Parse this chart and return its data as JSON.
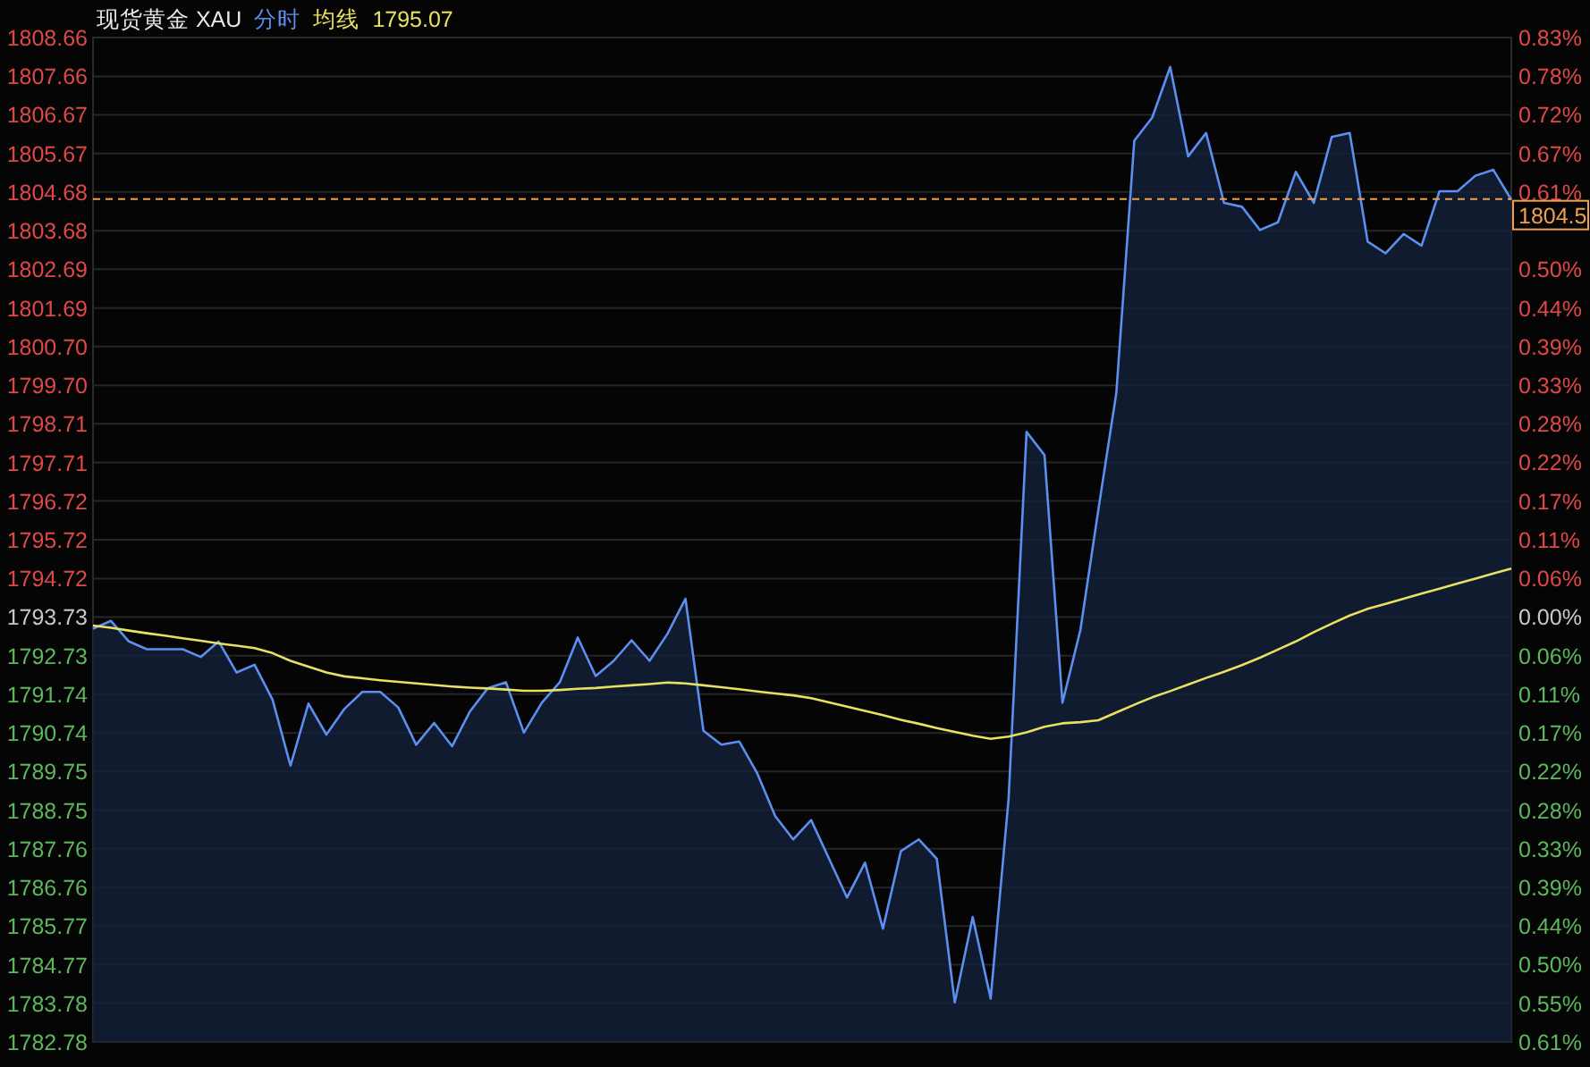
{
  "chart_data": {
    "type": "line",
    "title": "现货黄金 XAU",
    "annotations": [
      "1795.07"
    ],
    "grid": "y",
    "tick_labels": "y",
    "marker": "none",
    "categories": [
      null,
      null,
      null,
      null,
      null,
      null,
      null,
      null,
      null,
      null,
      null,
      null,
      null,
      null,
      null,
      null,
      null,
      null,
      null,
      null,
      null,
      null,
      null,
      null,
      null,
      null,
      null,
      null,
      null,
      null,
      null,
      null,
      null,
      null,
      null,
      null,
      null,
      null,
      null,
      null,
      null,
      null,
      null,
      null,
      null,
      null,
      null,
      null,
      null,
      null,
      null,
      null,
      null,
      null,
      null,
      null,
      null,
      null,
      null,
      null,
      null,
      null,
      null,
      null,
      null,
      null,
      null,
      null,
      null,
      null,
      null,
      null,
      null,
      null,
      null,
      null,
      null,
      null,
      null,
      null
    ],
    "ylim": [
      1782.78,
      1808.66
    ],
    "yticks": [
      {
        "value": 1808.66,
        "label": "1808.66"
      },
      {
        "value": 1807.66,
        "label": "1807.66"
      },
      {
        "value": 1806.67,
        "label": "1806.67"
      },
      {
        "value": 1805.67,
        "label": "1805.67"
      },
      {
        "value": 1804.68,
        "label": "1804.68"
      },
      {
        "value": 1803.68,
        "label": "1803.68"
      },
      {
        "value": 1802.69,
        "label": "1802.69"
      },
      {
        "value": 1801.69,
        "label": "1801.69"
      },
      {
        "value": 1800.7,
        "label": "1800.70"
      },
      {
        "value": 1799.7,
        "label": "1799.70"
      },
      {
        "value": 1798.71,
        "label": "1798.71"
      },
      {
        "value": 1797.71,
        "label": "1797.71"
      },
      {
        "value": 1796.72,
        "label": "1796.72"
      },
      {
        "value": 1795.72,
        "label": "1795.72"
      },
      {
        "value": 1794.72,
        "label": "1794.72"
      },
      {
        "value": 1793.73,
        "label": "1793.73"
      },
      {
        "value": 1792.73,
        "label": "1792.73"
      },
      {
        "value": 1791.74,
        "label": "1791.74"
      },
      {
        "value": 1790.74,
        "label": "1790.74"
      },
      {
        "value": 1789.75,
        "label": "1789.75"
      },
      {
        "value": 1788.75,
        "label": "1788.75"
      },
      {
        "value": 1787.76,
        "label": "1787.76"
      },
      {
        "value": 1786.76,
        "label": "1786.76"
      },
      {
        "value": 1785.77,
        "label": "1785.77"
      },
      {
        "value": 1784.77,
        "label": "1784.77"
      },
      {
        "value": 1783.78,
        "label": "1783.78"
      },
      {
        "value": 1782.78,
        "label": "1782.78"
      }
    ],
    "y2lim": [
      -0.6102,
      0.832
    ],
    "y2ticks": [
      {
        "value": 0.832,
        "label": "0.83%"
      },
      {
        "value": 0.7766,
        "label": "0.78%"
      },
      {
        "value": 0.7211,
        "label": "0.72%"
      },
      {
        "value": 0.6656,
        "label": "0.67%"
      },
      {
        "value": 0.6102,
        "label": "0.61%"
      },
      {
        "value": 0.5547,
        "label": null
      },
      {
        "value": 0.4992,
        "label": "0.50%"
      },
      {
        "value": 0.4437,
        "label": "0.44%"
      },
      {
        "value": 0.3883,
        "label": "0.39%"
      },
      {
        "value": 0.3328,
        "label": "0.33%"
      },
      {
        "value": 0.2773,
        "label": "0.28%"
      },
      {
        "value": 0.2219,
        "label": "0.22%"
      },
      {
        "value": 0.1664,
        "label": "0.17%"
      },
      {
        "value": 0.1109,
        "label": "0.11%"
      },
      {
        "value": 0.0555,
        "label": "0.06%"
      },
      {
        "value": 0,
        "label": "0.00%"
      },
      {
        "value": -0.0555,
        "label": "0.06%"
      },
      {
        "value": -0.1109,
        "label": "0.11%"
      },
      {
        "value": -0.1664,
        "label": "0.17%"
      },
      {
        "value": -0.2219,
        "label": "0.22%"
      },
      {
        "value": -0.2773,
        "label": "0.28%"
      },
      {
        "value": -0.3328,
        "label": "0.33%"
      },
      {
        "value": -0.3883,
        "label": "0.39%"
      },
      {
        "value": -0.4437,
        "label": "0.44%"
      },
      {
        "value": -0.4992,
        "label": "0.50%"
      },
      {
        "value": -0.5547,
        "label": "0.55%"
      },
      {
        "value": -0.6102,
        "label": "0.61%"
      }
    ],
    "ref_lines": [
      {
        "axis": "y",
        "value": 1804.5,
        "label": "1804.5",
        "color": "#f0a050",
        "line_style": "dashed"
      }
    ],
    "series": [
      {
        "name": "分时",
        "type": "area",
        "color": "#5b8ff0",
        "values": [
          1793.43,
          1793.63,
          1793.1,
          1792.9,
          1792.9,
          1792.9,
          1792.7,
          1793.1,
          1792.3,
          1792.5,
          1791.6,
          1789.9,
          1791.5,
          1790.7,
          1791.36,
          1791.8,
          1791.8,
          1791.4,
          1790.44,
          1791.0,
          1790.4,
          1791.3,
          1791.9,
          1792.05,
          1790.75,
          1791.52,
          1792.05,
          1793.2,
          1792.21,
          1792.6,
          1793.13,
          1792.6,
          1793.3,
          1794.2,
          1790.8,
          1790.44,
          1790.52,
          1789.7,
          1788.6,
          1788.0,
          1788.5,
          1787.5,
          1786.5,
          1787.4,
          1785.7,
          1787.7,
          1788.0,
          1787.5,
          1783.8,
          1786.0,
          1783.9,
          1789.06,
          1798.5,
          1797.9,
          1791.52,
          1793.4,
          1796.5,
          1799.5,
          1806.0,
          1806.6,
          1807.9,
          1805.6,
          1806.2,
          1804.4,
          1804.3,
          1803.7,
          1803.9,
          1805.2,
          1804.4,
          1806.1,
          1806.2,
          1803.4,
          1803.1,
          1803.6,
          1803.3,
          1804.7,
          1804.7,
          1805.1,
          1805.25,
          1804.48
        ]
      },
      {
        "name": "均线",
        "type": "line",
        "color": "#e8e060",
        "values": [
          1793.51,
          1793.45,
          1793.38,
          1793.31,
          1793.25,
          1793.18,
          1793.12,
          1793.05,
          1792.99,
          1792.93,
          1792.8,
          1792.6,
          1792.45,
          1792.3,
          1792.2,
          1792.15,
          1792.1,
          1792.06,
          1792.02,
          1791.98,
          1791.94,
          1791.91,
          1791.89,
          1791.86,
          1791.83,
          1791.83,
          1791.85,
          1791.88,
          1791.9,
          1791.94,
          1791.97,
          1792.0,
          1792.04,
          1792.02,
          1791.97,
          1791.92,
          1791.87,
          1791.81,
          1791.76,
          1791.71,
          1791.64,
          1791.53,
          1791.42,
          1791.31,
          1791.2,
          1791.08,
          1790.98,
          1790.87,
          1790.77,
          1790.67,
          1790.59,
          1790.65,
          1790.76,
          1790.9,
          1790.99,
          1791.02,
          1791.07,
          1791.27,
          1791.47,
          1791.66,
          1791.82,
          1791.99,
          1792.16,
          1792.32,
          1792.49,
          1792.68,
          1792.89,
          1793.1,
          1793.34,
          1793.56,
          1793.77,
          1793.94,
          1794.07,
          1794.2,
          1794.33,
          1794.46,
          1794.59,
          1794.72,
          1794.85,
          1794.98
        ]
      }
    ]
  }
}
